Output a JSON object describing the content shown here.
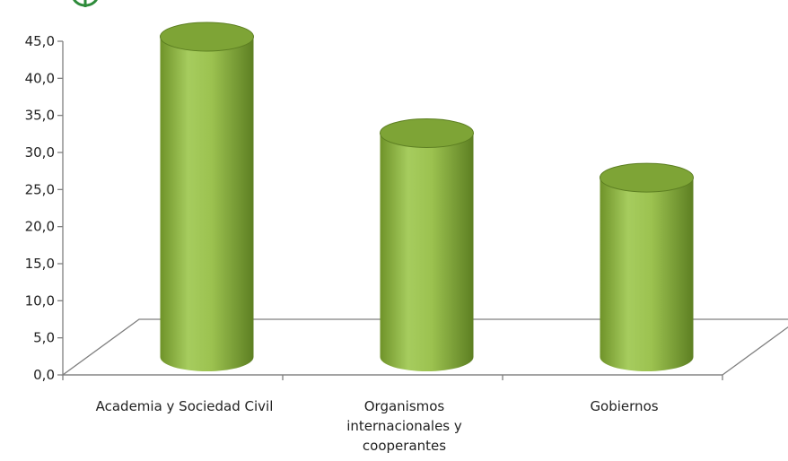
{
  "colors": {
    "bar_light": "#a6cc5e",
    "bar_mid": "#8cb33c",
    "bar_dark": "#5d7f22",
    "top_fill": "#7ea436",
    "logo_green": "#2e8b3a"
  },
  "logo": {
    "icon": "green-ring-logo-icon"
  },
  "chart_data": {
    "type": "bar",
    "style": "3d-cylinder",
    "categories": [
      "Academia y Sociedad Civil",
      "Organismos internacionales y cooperantes",
      "Gobiernos"
    ],
    "category_lines": [
      [
        "Academia y Sociedad Civil"
      ],
      [
        "Organismos",
        "internacionales y",
        "cooperantes"
      ],
      [
        "Gobiernos"
      ]
    ],
    "values": [
      45.0,
      32.0,
      26.0
    ],
    "ylim": [
      0,
      45
    ],
    "y_ticks": [
      "0,0",
      "5,0",
      "10,0",
      "15,0",
      "20,0",
      "25,0",
      "30,0",
      "35,0",
      "40,0",
      "45,0"
    ],
    "y_tick_values": [
      0,
      5,
      10,
      15,
      20,
      25,
      30,
      35,
      40,
      45
    ],
    "grid": false,
    "legend": "none"
  }
}
